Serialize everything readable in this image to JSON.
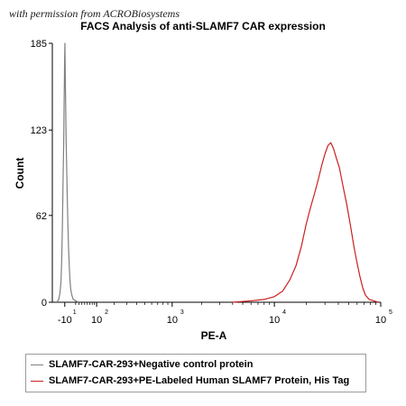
{
  "watermark": "with permission from ACROBiosystems",
  "chart_data": {
    "type": "area",
    "title": "FACS Analysis of anti-SLAMF7 CAR expression",
    "xlabel": "PE-A",
    "ylabel": "Count",
    "xscale": "biexponential (log)",
    "xlim": [
      -50,
      100000
    ],
    "ylim": [
      0,
      185
    ],
    "yticks": [
      "0",
      "62",
      "123",
      "185"
    ],
    "xticks": [
      {
        "value": -10,
        "base": "-10",
        "exp": "1"
      },
      {
        "value": 100,
        "base": "10",
        "exp": "2"
      },
      {
        "value": 1000,
        "base": "10",
        "exp": "3"
      },
      {
        "value": 10000,
        "base": "10",
        "exp": "4"
      },
      {
        "value": 100000,
        "base": "10",
        "exp": "5"
      }
    ],
    "grid": false,
    "legend_position": "bottom",
    "series": [
      {
        "name": "SLAMF7-CAR-293+Negative control protein",
        "color": "#808080",
        "points": [
          [
            -35,
            0
          ],
          [
            -28,
            2
          ],
          [
            -24,
            7
          ],
          [
            -21,
            15
          ],
          [
            -19,
            30
          ],
          [
            -17,
            52
          ],
          [
            -15,
            85
          ],
          [
            -13,
            115
          ],
          [
            -12,
            140
          ],
          [
            -11,
            160
          ],
          [
            -10.5,
            172
          ],
          [
            -10,
            180
          ],
          [
            -9.6,
            185
          ],
          [
            -9.2,
            176
          ],
          [
            -8.8,
            166
          ],
          [
            -8.3,
            156
          ],
          [
            -7.7,
            144
          ],
          [
            -7,
            130
          ],
          [
            -6,
            112
          ],
          [
            -4.5,
            92
          ],
          [
            -3,
            72
          ],
          [
            -1.5,
            55
          ],
          [
            0,
            40
          ],
          [
            2,
            26
          ],
          [
            4,
            15
          ],
          [
            6,
            9
          ],
          [
            9,
            5
          ],
          [
            13,
            2
          ],
          [
            20,
            1
          ],
          [
            30,
            0
          ]
        ]
      },
      {
        "name": "SLAMF7-CAR-293+PE-Labeled Human SLAMF7 Protein, His Tag",
        "color": "#cc1f1f",
        "points": [
          [
            4000,
            0
          ],
          [
            6000,
            1
          ],
          [
            8000,
            2
          ],
          [
            10000,
            4
          ],
          [
            12000,
            8
          ],
          [
            14000,
            16
          ],
          [
            16000,
            26
          ],
          [
            18000,
            40
          ],
          [
            20000,
            56
          ],
          [
            22000,
            68
          ],
          [
            24000,
            78
          ],
          [
            26000,
            88
          ],
          [
            28000,
            98
          ],
          [
            30000,
            106
          ],
          [
            32000,
            112
          ],
          [
            34000,
            114
          ],
          [
            36000,
            110
          ],
          [
            38000,
            104
          ],
          [
            41000,
            96
          ],
          [
            44000,
            84
          ],
          [
            48000,
            70
          ],
          [
            52000,
            55
          ],
          [
            56000,
            40
          ],
          [
            60000,
            28
          ],
          [
            64000,
            18
          ],
          [
            68000,
            10
          ],
          [
            72000,
            5
          ],
          [
            78000,
            2
          ],
          [
            86000,
            1
          ],
          [
            95000,
            0
          ]
        ]
      }
    ]
  }
}
